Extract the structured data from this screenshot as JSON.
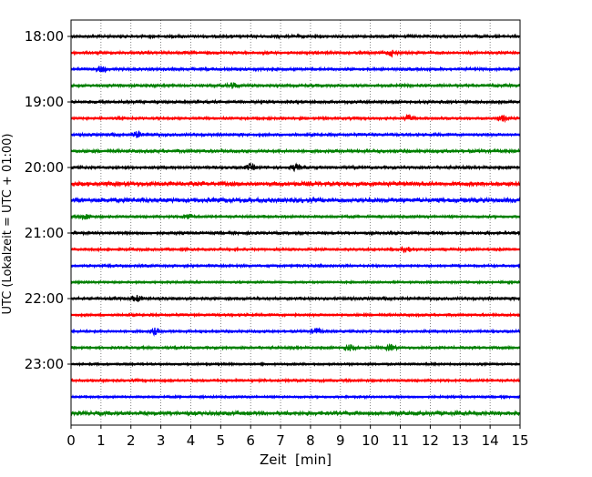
{
  "chart_data": {
    "type": "line",
    "subtype": "helicorder",
    "xlabel": "Zeit  [min]",
    "ylabel": "UTC (Lokalzeit = UTC + 01:00)",
    "xlim": [
      0,
      15
    ],
    "xticks": [
      "0",
      "1",
      "2",
      "3",
      "4",
      "5",
      "6",
      "7",
      "8",
      "9",
      "10",
      "11",
      "12",
      "13",
      "14",
      "15"
    ],
    "yticks": [
      "18:00",
      "19:00",
      "20:00",
      "21:00",
      "22:00",
      "23:00"
    ],
    "grid": "vertical dotted at each minute",
    "color_cycle": [
      "#000000",
      "#ff0000",
      "#0000ff",
      "#008000"
    ],
    "traces": [
      {
        "start": "18:00",
        "amp": 1.0
      },
      {
        "start": "18:15",
        "amp": 1.0
      },
      {
        "start": "18:30",
        "amp": 1.0
      },
      {
        "start": "18:45",
        "amp": 1.0
      },
      {
        "start": "19:00",
        "amp": 1.0
      },
      {
        "start": "19:15",
        "amp": 0.9
      },
      {
        "start": "19:30",
        "amp": 1.0
      },
      {
        "start": "19:45",
        "amp": 1.1
      },
      {
        "start": "20:00",
        "amp": 1.0
      },
      {
        "start": "20:15",
        "amp": 1.5
      },
      {
        "start": "20:30",
        "amp": 1.6
      },
      {
        "start": "20:45",
        "amp": 0.9
      },
      {
        "start": "21:00",
        "amp": 1.0
      },
      {
        "start": "21:15",
        "amp": 0.9
      },
      {
        "start": "21:30",
        "amp": 0.9
      },
      {
        "start": "21:45",
        "amp": 0.8
      },
      {
        "start": "22:00",
        "amp": 1.0
      },
      {
        "start": "22:15",
        "amp": 0.9
      },
      {
        "start": "22:30",
        "amp": 0.9
      },
      {
        "start": "22:45",
        "amp": 0.9
      },
      {
        "start": "23:00",
        "amp": 0.8
      },
      {
        "start": "23:15",
        "amp": 0.9
      },
      {
        "start": "23:30",
        "amp": 0.8
      },
      {
        "start": "23:45",
        "amp": 1.4
      }
    ],
    "events": [
      {
        "trace": "18:15",
        "minute": 10.7
      },
      {
        "trace": "18:30",
        "minute": 1.0
      },
      {
        "trace": "18:45",
        "minute": 5.4
      },
      {
        "trace": "19:15",
        "minute": 11.3
      },
      {
        "trace": "19:15",
        "minute": 14.4
      },
      {
        "trace": "19:30",
        "minute": 2.2
      },
      {
        "trace": "20:00",
        "minute": 6.0
      },
      {
        "trace": "20:00",
        "minute": 7.5
      },
      {
        "trace": "20:45",
        "minute": 0.5
      },
      {
        "trace": "20:45",
        "minute": 3.9
      },
      {
        "trace": "21:15",
        "minute": 11.2
      },
      {
        "trace": "22:00",
        "minute": 2.2
      },
      {
        "trace": "22:30",
        "minute": 2.8
      },
      {
        "trace": "22:30",
        "minute": 8.2
      },
      {
        "trace": "22:45",
        "minute": 9.3
      },
      {
        "trace": "22:45",
        "minute": 10.7
      }
    ]
  }
}
